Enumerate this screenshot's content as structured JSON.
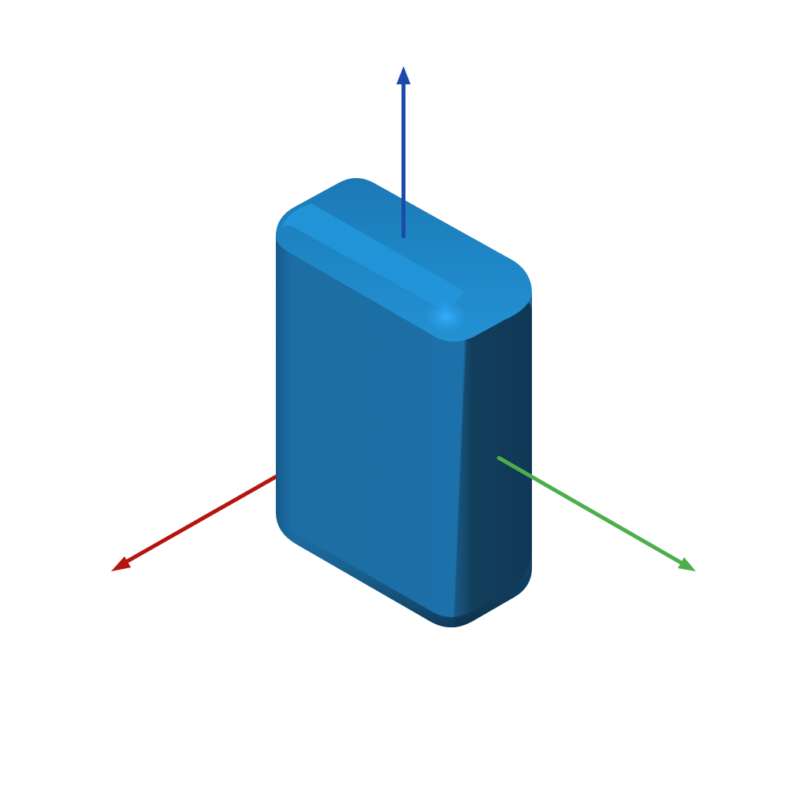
{
  "scene": {
    "background_color": "#ffffff",
    "object": {
      "shape": "rounded-box",
      "colors": {
        "front": "#1c6ea4",
        "top": "#1f86c5",
        "top_highlight": "#2aa3ec",
        "side": "#123e5c",
        "edge_shadow": "#0b2a40"
      }
    },
    "axes": [
      {
        "name": "x-axis",
        "color": "#b5150c"
      },
      {
        "name": "y-axis",
        "color": "#4cae4c"
      },
      {
        "name": "z-axis",
        "color": "#1b4aa8"
      }
    ]
  }
}
